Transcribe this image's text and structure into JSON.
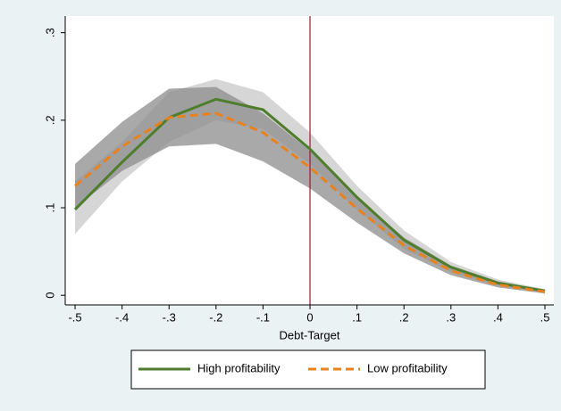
{
  "chart_data": {
    "type": "line",
    "x_label": "Debt-Target",
    "x": [
      -0.5,
      -0.4,
      -0.3,
      -0.2,
      -0.1,
      0,
      0.1,
      0.2,
      0.3,
      0.4,
      0.5
    ],
    "series": [
      {
        "name": "High profitability",
        "color": "#4e7d2b",
        "dash": "solid",
        "values": [
          0.098,
          0.152,
          0.203,
          0.224,
          0.212,
          0.167,
          0.112,
          0.063,
          0.032,
          0.014,
          0.005
        ]
      },
      {
        "name": "Low profitability",
        "color": "#e8821e",
        "dash": "dashed",
        "values": [
          0.125,
          0.17,
          0.203,
          0.208,
          0.186,
          0.146,
          0.099,
          0.057,
          0.028,
          0.012,
          0.004
        ]
      }
    ],
    "bands": [
      {
        "color": "#c8c8c8",
        "upper": [
          0.13,
          0.175,
          0.232,
          0.247,
          0.232,
          0.186,
          0.125,
          0.074,
          0.038,
          0.018,
          0.007
        ],
        "lower": [
          0.07,
          0.13,
          0.175,
          0.2,
          0.19,
          0.15,
          0.098,
          0.053,
          0.027,
          0.011,
          0.003
        ]
      },
      {
        "color": "#8c8c8c",
        "upper": [
          0.15,
          0.198,
          0.236,
          0.238,
          0.208,
          0.165,
          0.112,
          0.066,
          0.034,
          0.016,
          0.006
        ],
        "lower": [
          0.1,
          0.142,
          0.17,
          0.173,
          0.153,
          0.122,
          0.083,
          0.048,
          0.023,
          0.009,
          0.002
        ]
      }
    ],
    "vline": 0,
    "vline_color": "#a0162c",
    "xlim": [
      -0.521,
      0.519
    ],
    "xticks": [
      {
        "value": -0.5,
        "label": "-.5"
      },
      {
        "value": -0.4,
        "label": "-.4"
      },
      {
        "value": -0.3,
        "label": "-.3"
      },
      {
        "value": -0.2,
        "label": "-.2"
      },
      {
        "value": -0.1,
        "label": "-.1"
      },
      0,
      {
        "value": 0.1,
        "label": ".1"
      },
      {
        "value": 0.2,
        "label": ".2"
      },
      {
        "value": 0.3,
        "label": ".3"
      },
      {
        "value": 0.4,
        "label": ".4"
      },
      {
        "value": 0.5,
        "label": ".5"
      }
    ],
    "ylim": [
      -0.011,
      0.319
    ],
    "yticks": [
      0,
      {
        "value": 0.1,
        "label": ".1"
      },
      {
        "value": 0.2,
        "label": ".2"
      },
      {
        "value": 0.3,
        "label": ".3"
      }
    ],
    "legend": "bottom"
  }
}
